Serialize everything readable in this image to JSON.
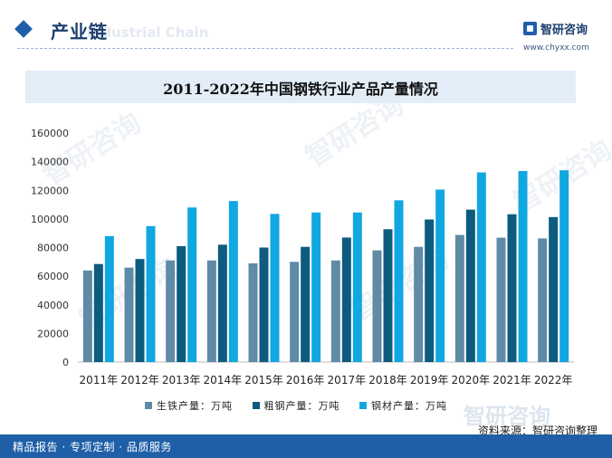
{
  "header": {
    "section_title": "产业链",
    "watermark_text": "Industrial Chain",
    "brand_name": "智研咨询",
    "brand_url": "www.chyxx.com",
    "logo_icon": "chyxx-logo-icon"
  },
  "background_watermark": "智研咨询",
  "colors": {
    "accent": "#1f5fa8",
    "title_band": "#e3edf8",
    "pig_iron": "#5f8ba6",
    "crude_steel": "#0d5b7e",
    "steel_products": "#11a7e0"
  },
  "chart_data": {
    "type": "bar",
    "title": "2011-2022年中国钢铁行业产品产量情况",
    "xlabel": "",
    "ylabel": "",
    "ylim": [
      0,
      160000
    ],
    "yticks": [
      0,
      20000,
      40000,
      60000,
      80000,
      100000,
      120000,
      140000,
      160000
    ],
    "categories": [
      "2011年",
      "2012年",
      "2013年",
      "2014年",
      "2015年",
      "2016年",
      "2017年",
      "2018年",
      "2019年",
      "2020年",
      "2021年",
      "2022年"
    ],
    "series": [
      {
        "name": "生铁产量：万吨",
        "values": [
          64000,
          66000,
          71000,
          71000,
          69000,
          70000,
          71000,
          78000,
          80500,
          88800,
          86900,
          86400
        ]
      },
      {
        "name": "粗钢产量：万吨",
        "values": [
          68500,
          72000,
          81000,
          82000,
          80000,
          80500,
          87000,
          92800,
          99600,
          106500,
          103300,
          101300
        ]
      },
      {
        "name": "钢材产量：万吨",
        "values": [
          88000,
          95000,
          108000,
          112500,
          103500,
          104500,
          104500,
          113000,
          120500,
          132500,
          133500,
          134000
        ]
      }
    ],
    "grid": false,
    "legend_position": "bottom"
  },
  "source": "资料来源：智研咨询整理",
  "footer": {
    "text": "精品报告 · 专项定制 · 品质服务",
    "watermark": "智研咨询"
  }
}
